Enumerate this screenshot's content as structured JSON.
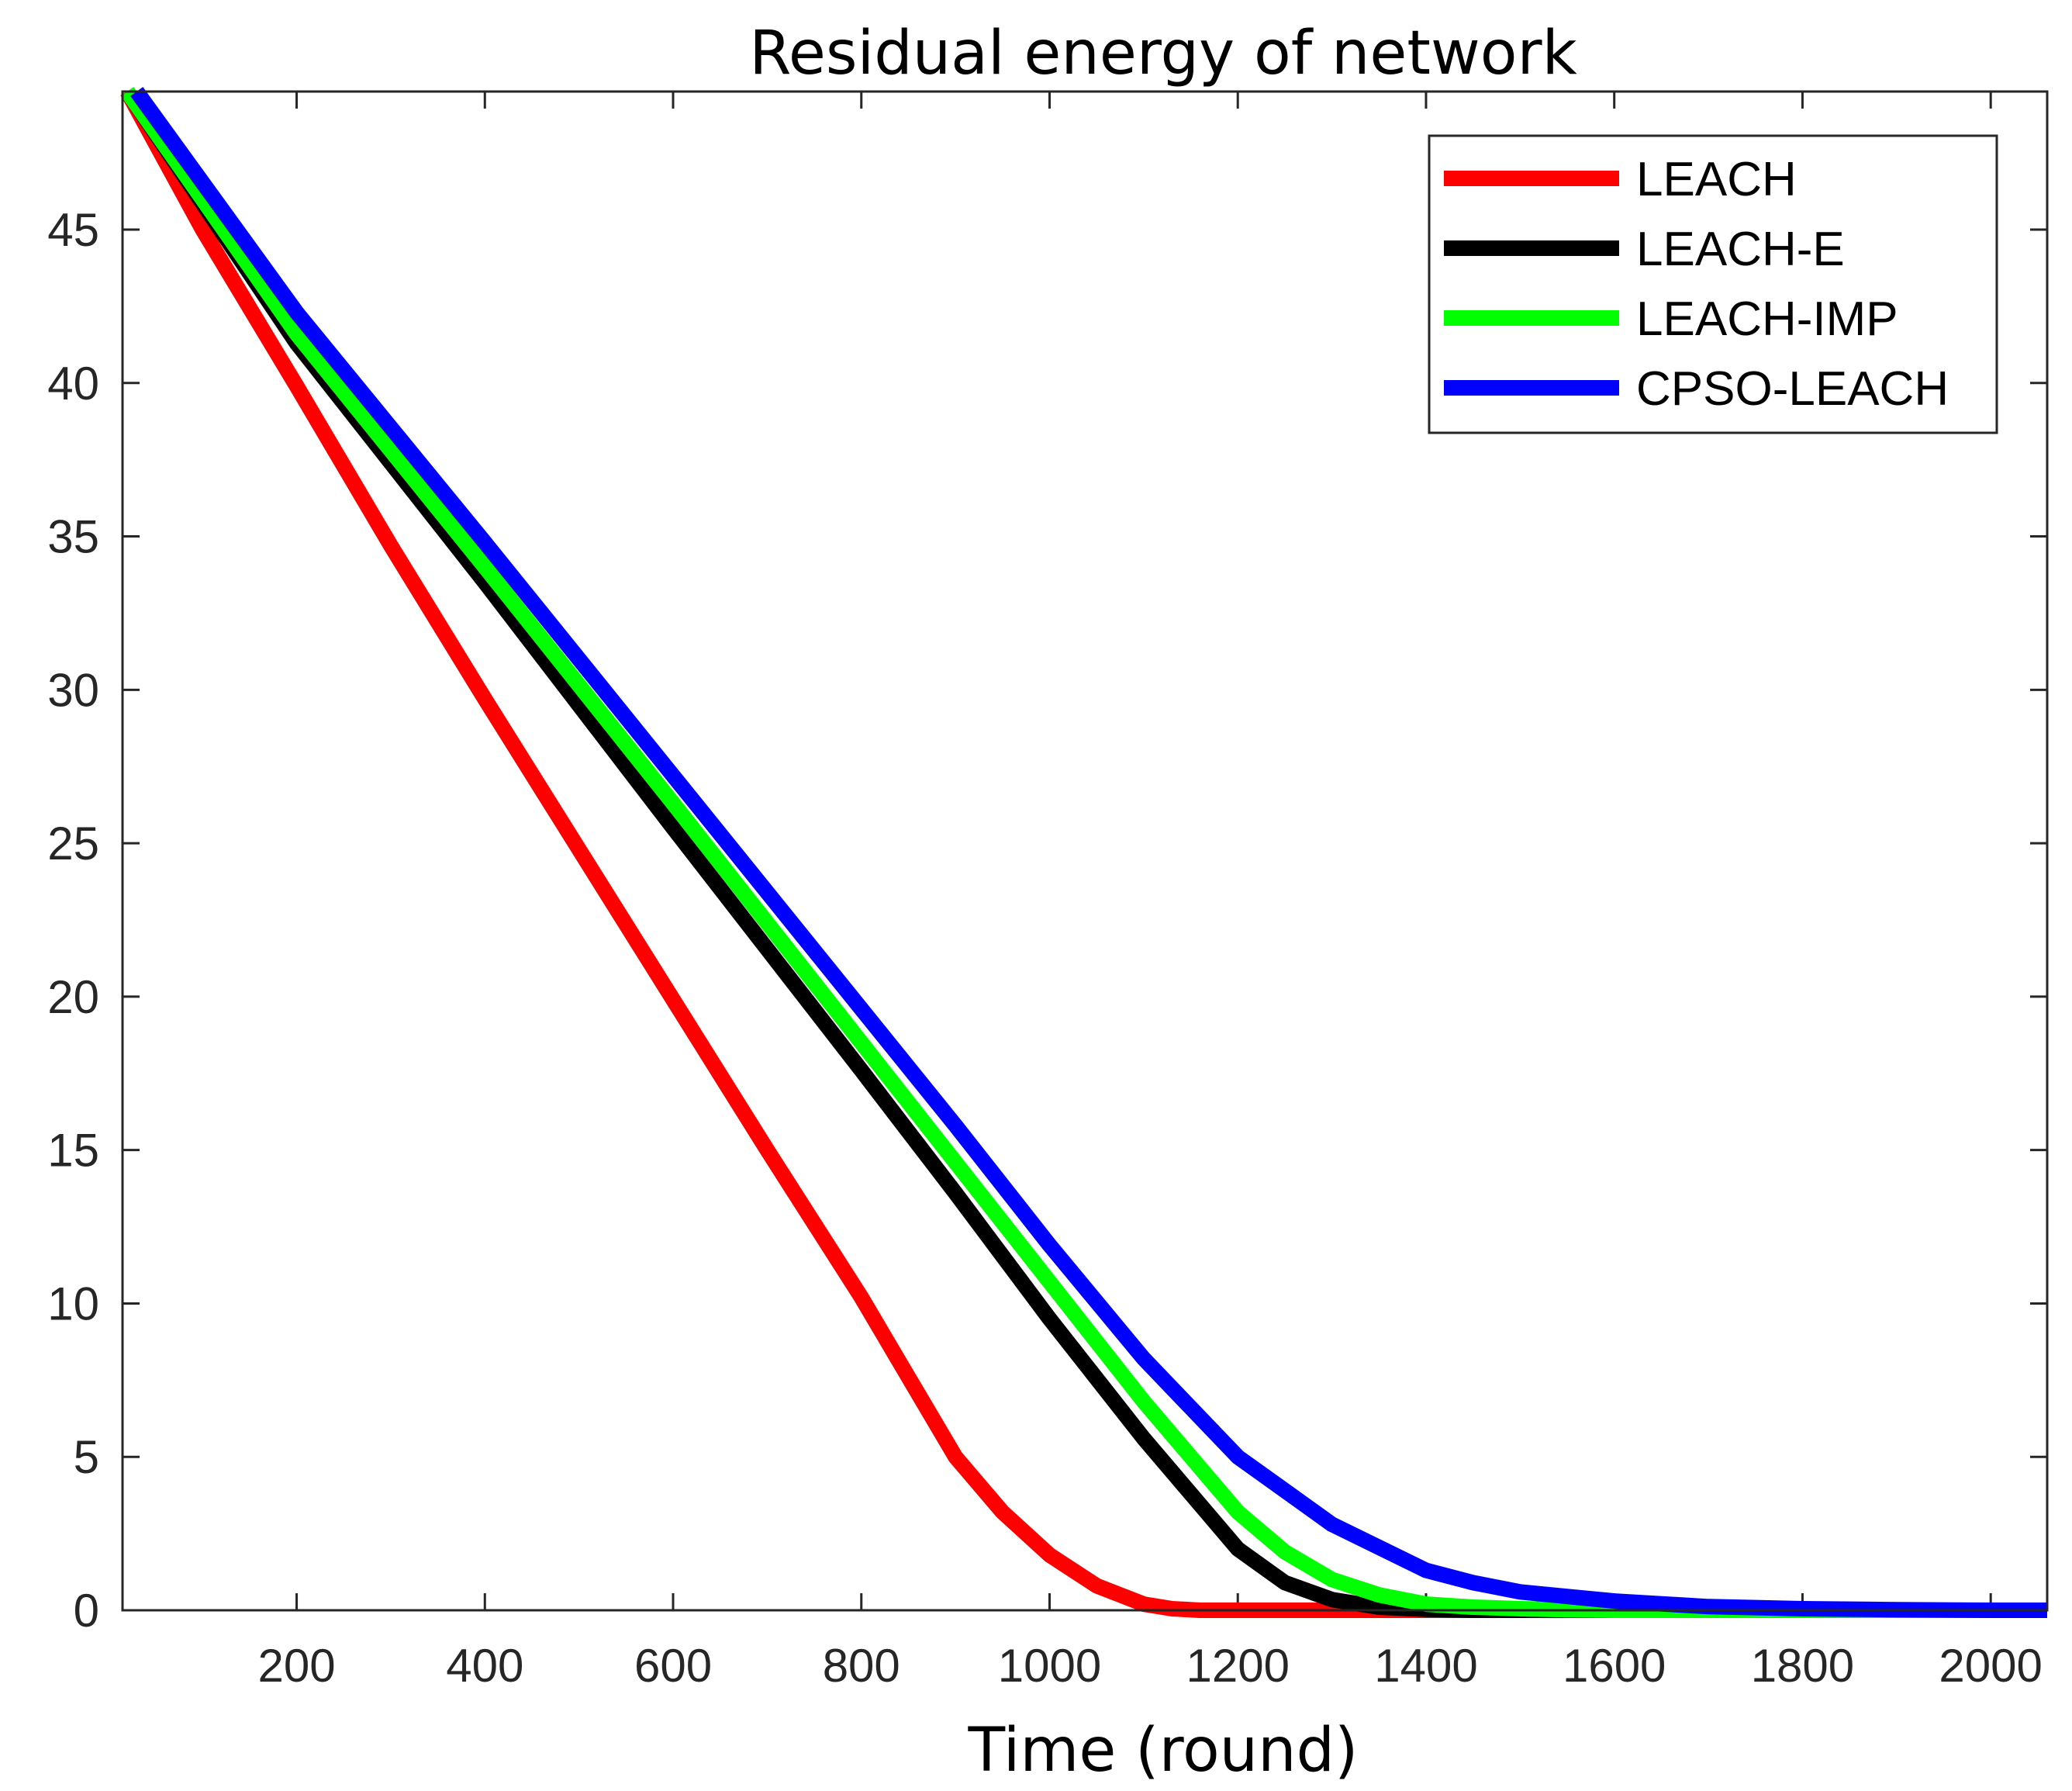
{
  "chart_data": {
    "type": "line",
    "title": "Residual energy of network",
    "xlabel": "Time (round)",
    "ylabel": "",
    "xlim": [
      15,
      2060
    ],
    "ylim": [
      0,
      49.5
    ],
    "xticks": [
      200,
      400,
      600,
      800,
      1000,
      1200,
      1400,
      1600,
      1800,
      2000
    ],
    "yticks": [
      0,
      5,
      10,
      15,
      20,
      25,
      30,
      35,
      40,
      45
    ],
    "legend_position": "top-right",
    "series": [
      {
        "name": "LEACH",
        "color": "#ff0000",
        "x": [
          20,
          100,
          200,
          300,
          400,
          500,
          600,
          700,
          800,
          850,
          900,
          950,
          1000,
          1050,
          1100,
          1130,
          1160,
          1200,
          1400,
          1600,
          1800,
          2000,
          2060
        ],
        "y": [
          49.5,
          45.0,
          39.9,
          34.7,
          29.7,
          24.8,
          19.9,
          15.0,
          10.2,
          7.6,
          5.0,
          3.2,
          1.8,
          0.8,
          0.2,
          0.05,
          0,
          0,
          0,
          0,
          0,
          0,
          0
        ]
      },
      {
        "name": "LEACH-E",
        "color": "#000000",
        "x": [
          20,
          200,
          400,
          600,
          800,
          900,
          1000,
          1100,
          1200,
          1250,
          1300,
          1350,
          1400,
          1450,
          1600,
          1800,
          2000,
          2060
        ],
        "y": [
          49.5,
          41.3,
          33.5,
          25.5,
          17.6,
          13.6,
          9.5,
          5.6,
          2.0,
          0.9,
          0.35,
          0.1,
          0.03,
          0,
          0,
          0,
          0,
          0
        ]
      },
      {
        "name": "LEACH-IMP",
        "color": "#00ff00",
        "x": [
          20,
          200,
          400,
          600,
          800,
          900,
          1000,
          1100,
          1200,
          1250,
          1300,
          1350,
          1400,
          1450,
          1500,
          1550,
          1600,
          1800,
          2000,
          2060
        ],
        "y": [
          49.5,
          41.6,
          34.0,
          26.3,
          18.5,
          14.6,
          10.7,
          6.8,
          3.2,
          1.9,
          1.0,
          0.5,
          0.2,
          0.1,
          0.05,
          0.02,
          0,
          0,
          0,
          0
        ]
      },
      {
        "name": "CPSO-LEACH",
        "color": "#0000ff",
        "x": [
          30,
          200,
          400,
          600,
          800,
          900,
          1000,
          1100,
          1200,
          1300,
          1400,
          1450,
          1500,
          1600,
          1700,
          1800,
          1900,
          2000,
          2060
        ],
        "y": [
          49.5,
          42.3,
          34.8,
          27.2,
          19.6,
          15.8,
          11.9,
          8.2,
          5.0,
          2.8,
          1.3,
          0.9,
          0.6,
          0.3,
          0.12,
          0.05,
          0.02,
          0,
          0
        ]
      }
    ]
  }
}
